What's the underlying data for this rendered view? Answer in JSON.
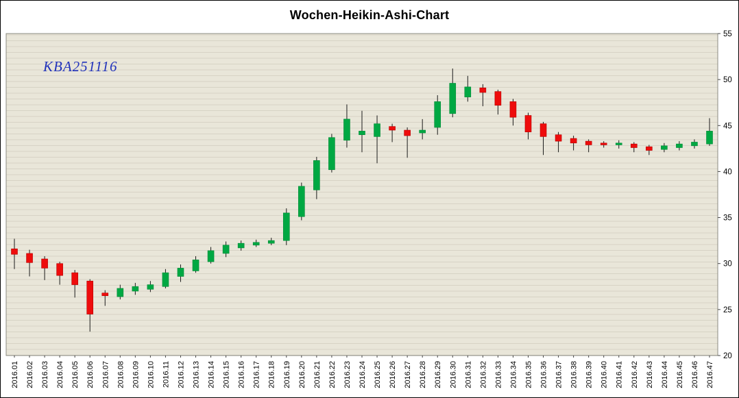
{
  "header": {
    "title": "Wochen-Heikin-Ashi-Chart"
  },
  "watermark": {
    "label": "KBA251116"
  },
  "chart_data": {
    "type": "candlestick",
    "variant": "heikin-ashi-weekly",
    "title": "Wochen-Heikin-Ashi-Chart",
    "watermark": "KBA251116",
    "y_axis": {
      "min": 20,
      "max": 55,
      "ticks": [
        55,
        50,
        45,
        40,
        35,
        30,
        25,
        20
      ],
      "position": "right"
    },
    "x_axis": {
      "tick_rotation": -90
    },
    "layout": {
      "grid": "horizontal-ruling",
      "legend": "none"
    },
    "colors": {
      "up": "#00a843",
      "down": "#ee0c0c",
      "up_border": "#008a36",
      "down_border": "#b50000",
      "wick": "#1a1a1a",
      "background": "#e9e6d9",
      "ruling": "#d7d3c5",
      "plot_border": "#8a8a80",
      "watermark": "#2233bb"
    },
    "categories": [
      "2016.01",
      "2016.02",
      "2016.03",
      "2016.04",
      "2016.05",
      "2016.06",
      "2016.07",
      "2016.08",
      "2016.09",
      "2016.10",
      "2016.11",
      "2016.12",
      "2016.13",
      "2016.14",
      "2016.15",
      "2016.16",
      "2016.17",
      "2016.18",
      "2016.19",
      "2016.20",
      "2016.21",
      "2016.22",
      "2016.23",
      "2016.24",
      "2016.25",
      "2016.26",
      "2016.27",
      "2016.28",
      "2016.29",
      "2016.30",
      "2016.31",
      "2016.32",
      "2016.33",
      "2016.34",
      "2016.35",
      "2016.36",
      "2016.37",
      "2016.38",
      "2016.39",
      "2016.40",
      "2016.41",
      "2016.42",
      "2016.43",
      "2016.44",
      "2016.45",
      "2016.46",
      "2016.47"
    ],
    "series": [
      {
        "name": "Heikin-Ashi",
        "ohlc": [
          [
            31.6,
            32.7,
            29.4,
            31.0
          ],
          [
            31.1,
            31.5,
            28.6,
            30.1
          ],
          [
            30.5,
            30.8,
            28.2,
            29.5
          ],
          [
            30.0,
            30.2,
            27.7,
            28.7
          ],
          [
            29.0,
            29.3,
            26.3,
            27.7
          ],
          [
            28.1,
            28.3,
            22.6,
            24.5
          ],
          [
            26.8,
            27.1,
            25.4,
            26.5
          ],
          [
            26.4,
            27.7,
            26.1,
            27.3
          ],
          [
            27.0,
            27.9,
            26.6,
            27.5
          ],
          [
            27.2,
            28.1,
            26.9,
            27.7
          ],
          [
            27.5,
            29.4,
            27.3,
            29.0
          ],
          [
            28.6,
            29.9,
            28.0,
            29.5
          ],
          [
            29.2,
            30.8,
            29.0,
            30.4
          ],
          [
            30.2,
            31.8,
            30.0,
            31.4
          ],
          [
            31.1,
            32.4,
            30.7,
            32.0
          ],
          [
            31.7,
            32.5,
            31.4,
            32.2
          ],
          [
            32.0,
            32.6,
            31.8,
            32.3
          ],
          [
            32.2,
            32.8,
            32.0,
            32.5
          ],
          [
            32.5,
            36.0,
            32.0,
            35.5
          ],
          [
            35.1,
            38.8,
            34.7,
            38.4
          ],
          [
            38.0,
            41.6,
            37.0,
            41.2
          ],
          [
            40.2,
            44.1,
            39.9,
            43.7
          ],
          [
            43.4,
            47.3,
            42.6,
            45.7
          ],
          [
            44.0,
            46.6,
            42.1,
            44.4
          ],
          [
            43.8,
            46.1,
            40.9,
            45.2
          ],
          [
            44.9,
            45.2,
            43.2,
            44.5
          ],
          [
            44.5,
            44.8,
            41.5,
            43.9
          ],
          [
            44.2,
            45.7,
            43.5,
            44.5
          ],
          [
            44.8,
            48.3,
            44.0,
            47.6
          ],
          [
            46.3,
            51.2,
            45.9,
            49.6
          ],
          [
            48.1,
            50.4,
            47.6,
            49.2
          ],
          [
            49.1,
            49.5,
            47.1,
            48.6
          ],
          [
            48.7,
            48.9,
            46.2,
            47.2
          ],
          [
            47.6,
            47.9,
            45.0,
            45.9
          ],
          [
            46.1,
            46.4,
            43.5,
            44.3
          ],
          [
            45.2,
            45.4,
            41.8,
            43.8
          ],
          [
            44.0,
            44.3,
            42.1,
            43.3
          ],
          [
            43.6,
            43.9,
            42.3,
            43.1
          ],
          [
            43.3,
            43.5,
            42.1,
            42.9
          ],
          [
            43.1,
            43.3,
            42.6,
            42.9
          ],
          [
            42.9,
            43.4,
            42.5,
            43.1
          ],
          [
            43.0,
            43.2,
            42.1,
            42.6
          ],
          [
            42.7,
            42.9,
            41.8,
            42.3
          ],
          [
            42.4,
            43.1,
            42.1,
            42.8
          ],
          [
            42.6,
            43.3,
            42.3,
            43.0
          ],
          [
            42.8,
            43.5,
            42.5,
            43.2
          ],
          [
            43.0,
            45.8,
            42.8,
            44.4
          ]
        ]
      }
    ]
  }
}
